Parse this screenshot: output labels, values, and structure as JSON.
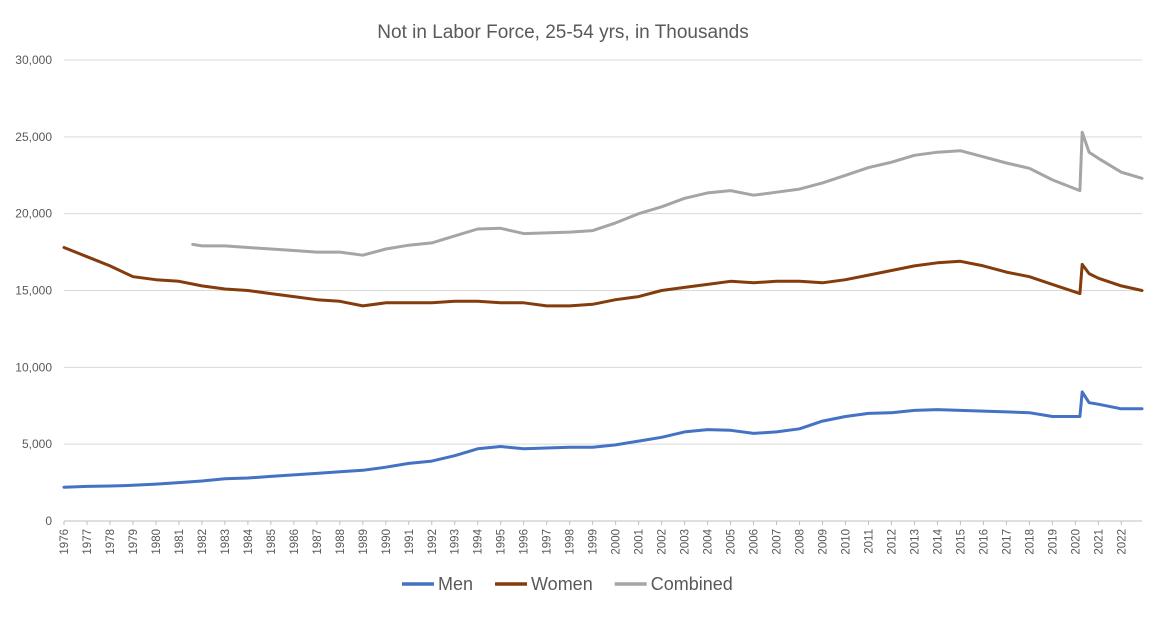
{
  "chart_data": {
    "type": "line",
    "title": "Not in Labor Force, 25-54 yrs, in Thousands",
    "xlabel": "",
    "ylabel": "",
    "ylim": [
      0,
      30000
    ],
    "y_ticks": [
      0,
      5000,
      10000,
      15000,
      20000,
      25000,
      30000
    ],
    "y_tick_labels": [
      "0",
      "5,000",
      "10,000",
      "15,000",
      "20,000",
      "25,000",
      "30,000"
    ],
    "x_range": [
      1976,
      2022.9
    ],
    "x_tick_labels": [
      "1976",
      "1977",
      "1978",
      "1979",
      "1980",
      "1981",
      "1982",
      "1983",
      "1984",
      "1985",
      "1986",
      "1987",
      "1988",
      "1989",
      "1990",
      "1991",
      "1992",
      "1993",
      "1994",
      "1995",
      "1996",
      "1997",
      "1998",
      "1999",
      "2000",
      "2001",
      "2002",
      "2003",
      "2004",
      "2005",
      "2006",
      "2007",
      "2008",
      "2009",
      "2010",
      "2011",
      "2012",
      "2013",
      "2014",
      "2015",
      "2016",
      "2017",
      "2018",
      "2019",
      "2020",
      "2021",
      "2022"
    ],
    "grid": "horizontal",
    "legend": "bottom",
    "series": [
      {
        "name": "Men",
        "color": "#4472c4",
        "x": [
          1976,
          1977,
          1978,
          1979,
          1980,
          1981,
          1982,
          1983,
          1984,
          1985,
          1986,
          1987,
          1988,
          1989,
          1990,
          1991,
          1992,
          1993,
          1994,
          1995,
          1996,
          1997,
          1998,
          1999,
          2000,
          2001,
          2002,
          2003,
          2004,
          2005,
          2006,
          2007,
          2008,
          2009,
          2010,
          2011,
          2012,
          2013,
          2014,
          2015,
          2016,
          2017,
          2018,
          2019,
          2020.2,
          2020.3,
          2020.6,
          2021,
          2022,
          2022.9
        ],
        "y": [
          2200,
          2250,
          2280,
          2320,
          2400,
          2500,
          2600,
          2750,
          2800,
          2900,
          3000,
          3100,
          3200,
          3300,
          3500,
          3750,
          3900,
          4250,
          4700,
          4850,
          4700,
          4750,
          4800,
          4800,
          4950,
          5200,
          5450,
          5800,
          5950,
          5900,
          5700,
          5800,
          6000,
          6500,
          6800,
          7000,
          7050,
          7200,
          7250,
          7200,
          7150,
          7100,
          7050,
          6800,
          6800,
          8400,
          7700,
          7600,
          7300,
          7300
        ]
      },
      {
        "name": "Women",
        "color": "#843c0c",
        "x": [
          1976,
          1977,
          1978,
          1979,
          1980,
          1981,
          1982,
          1983,
          1984,
          1985,
          1986,
          1987,
          1988,
          1989,
          1990,
          1991,
          1992,
          1993,
          1994,
          1995,
          1996,
          1997,
          1998,
          1999,
          2000,
          2001,
          2002,
          2003,
          2004,
          2005,
          2006,
          2007,
          2008,
          2009,
          2010,
          2011,
          2012,
          2013,
          2014,
          2015,
          2016,
          2017,
          2018,
          2019,
          2020.2,
          2020.3,
          2020.6,
          2021,
          2022,
          2022.9
        ],
        "y": [
          17800,
          17200,
          16600,
          15900,
          15700,
          15600,
          15300,
          15100,
          15000,
          14800,
          14600,
          14400,
          14300,
          14000,
          14200,
          14200,
          14200,
          14300,
          14300,
          14200,
          14200,
          14000,
          14000,
          14100,
          14400,
          14600,
          15000,
          15200,
          15400,
          15600,
          15500,
          15600,
          15600,
          15500,
          15700,
          16000,
          16300,
          16600,
          16800,
          16900,
          16600,
          16200,
          15900,
          15400,
          14800,
          16700,
          16100,
          15800,
          15300,
          15000
        ]
      },
      {
        "name": "Combined",
        "color": "#a5a5a5",
        "x": [
          1981.6,
          1982,
          1983,
          1984,
          1985,
          1986,
          1987,
          1988,
          1989,
          1990,
          1991,
          1992,
          1993,
          1994,
          1995,
          1996,
          1997,
          1998,
          1999,
          2000,
          2001,
          2002,
          2003,
          2004,
          2005,
          2006,
          2007,
          2008,
          2009,
          2010,
          2011,
          2012,
          2013,
          2014,
          2015,
          2016,
          2017,
          2018,
          2019,
          2020.2,
          2020.3,
          2020.6,
          2021,
          2022,
          2022.9
        ],
        "y": [
          18000,
          17900,
          17900,
          17800,
          17700,
          17600,
          17500,
          17500,
          17300,
          17700,
          17950,
          18100,
          18550,
          19000,
          19050,
          18700,
          18750,
          18800,
          18900,
          19400,
          20000,
          20450,
          21000,
          21350,
          21500,
          21200,
          21400,
          21600,
          22000,
          22500,
          23000,
          23350,
          23800,
          24000,
          24100,
          23700,
          23300,
          22950,
          22200,
          21500,
          25300,
          24000,
          23600,
          22700,
          22300
        ]
      }
    ]
  }
}
